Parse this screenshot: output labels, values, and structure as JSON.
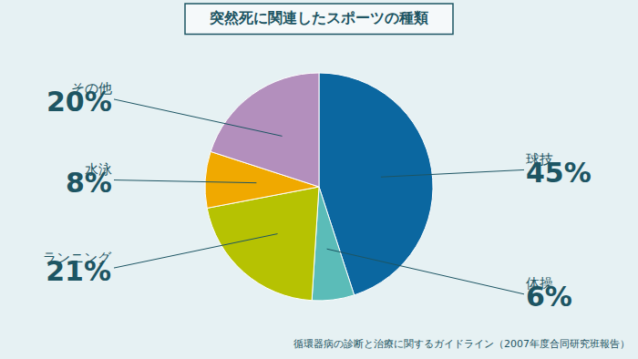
{
  "chart_data": {
    "type": "pie",
    "title": "突然死に関連したスポーツの種類",
    "categories": [
      "球技",
      "体操",
      "ランニング",
      "水泳",
      "その他"
    ],
    "values": [
      45,
      6,
      21,
      8,
      20
    ],
    "value_labels": [
      "45%",
      "6%",
      "21%",
      "8%",
      "20%"
    ],
    "colors": [
      "#0b67a0",
      "#5bbcb8",
      "#b6c202",
      "#f0a900",
      "#b38fbd"
    ],
    "data_labels": true,
    "annotations": [
      "循環器病の診断と治療に関するガイドライン（2007年度合同研究班報告）"
    ]
  }
}
